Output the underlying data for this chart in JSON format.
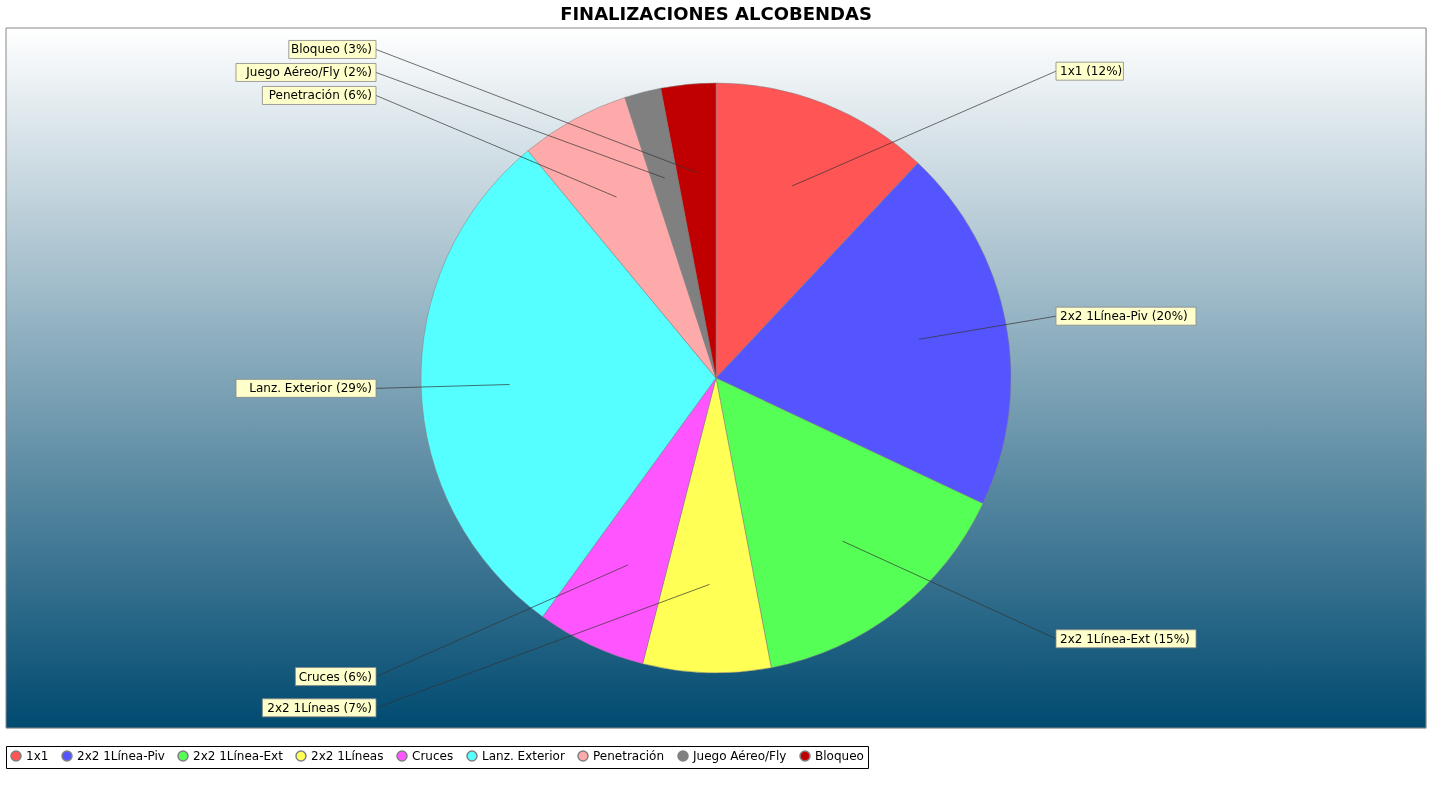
{
  "chart_data": {
    "type": "pie",
    "title": "FINALIZACIONES ALCOBENDAS",
    "categories": [
      "1x1",
      "2x2 1Línea-Piv",
      "2x2 1Línea-Ext",
      "2x2 1Líneas",
      "Cruces",
      "Lanz. Exterior",
      "Penetración",
      "Juego Aéreo/Fly",
      "Bloqueo"
    ],
    "values": [
      12,
      20,
      15,
      7,
      6,
      29,
      6,
      2,
      3
    ],
    "colors": [
      "#ff5555",
      "#5555ff",
      "#55ff55",
      "#ffff55",
      "#ff55ff",
      "#55ffff",
      "#ffaaaa",
      "#808080",
      "#c00000"
    ],
    "value_labels": [
      "1x1 (12%)",
      "2x2 1Línea-Piv (20%)",
      "2x2 1Línea-Ext (15%)",
      "2x2 1Líneas (7%)",
      "Cruces (6%)",
      "Lanz. Exterior (29%)",
      "Penetración (6%)",
      "Juego Aéreo/Fly (2%)",
      "Bloqueo (3%)"
    ],
    "legend": "bottom"
  }
}
